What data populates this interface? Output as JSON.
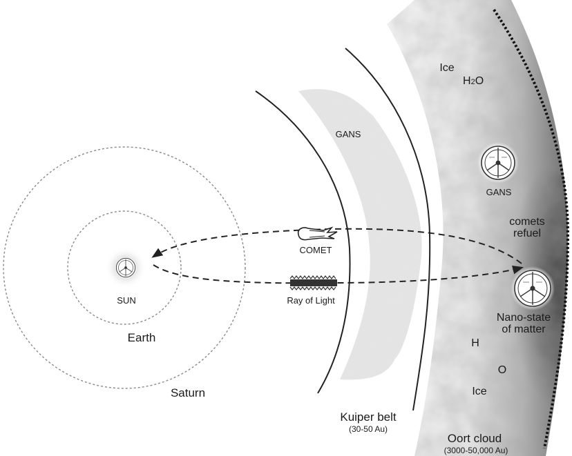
{
  "labels": {
    "sun": "SUN",
    "earth": "Earth",
    "saturn": "Saturn",
    "comet": "COMET",
    "ray_of_light": "Ray of Light",
    "kuiper_belt": "Kuiper belt",
    "kuiper_range": "(30-50 Au)",
    "gans_kuiper": "GANS",
    "oort_cloud": "Oort cloud",
    "oort_range": "(3000-50,000 Au)",
    "ice_top": "Ice",
    "h2o_prefix": "H",
    "h2o_sub": "2",
    "h2o_suffix": "O",
    "gans_oort": "GANS",
    "comets_refuel_1": "comets",
    "comets_refuel_2": "refuel",
    "nano_state_1": "Nano-state",
    "nano_state_2": "of matter",
    "h": "H",
    "o": "O",
    "ice_bottom": "Ice"
  },
  "colors": {
    "line": "#222222",
    "orbit": "#888888",
    "cloud_dark": "#6a6a6a",
    "cloud_light": "#f4f4f4"
  },
  "icons": [
    "sun-glow-icon",
    "reactor-emblem-icon",
    "comet-icon",
    "ray-of-light-icon"
  ]
}
